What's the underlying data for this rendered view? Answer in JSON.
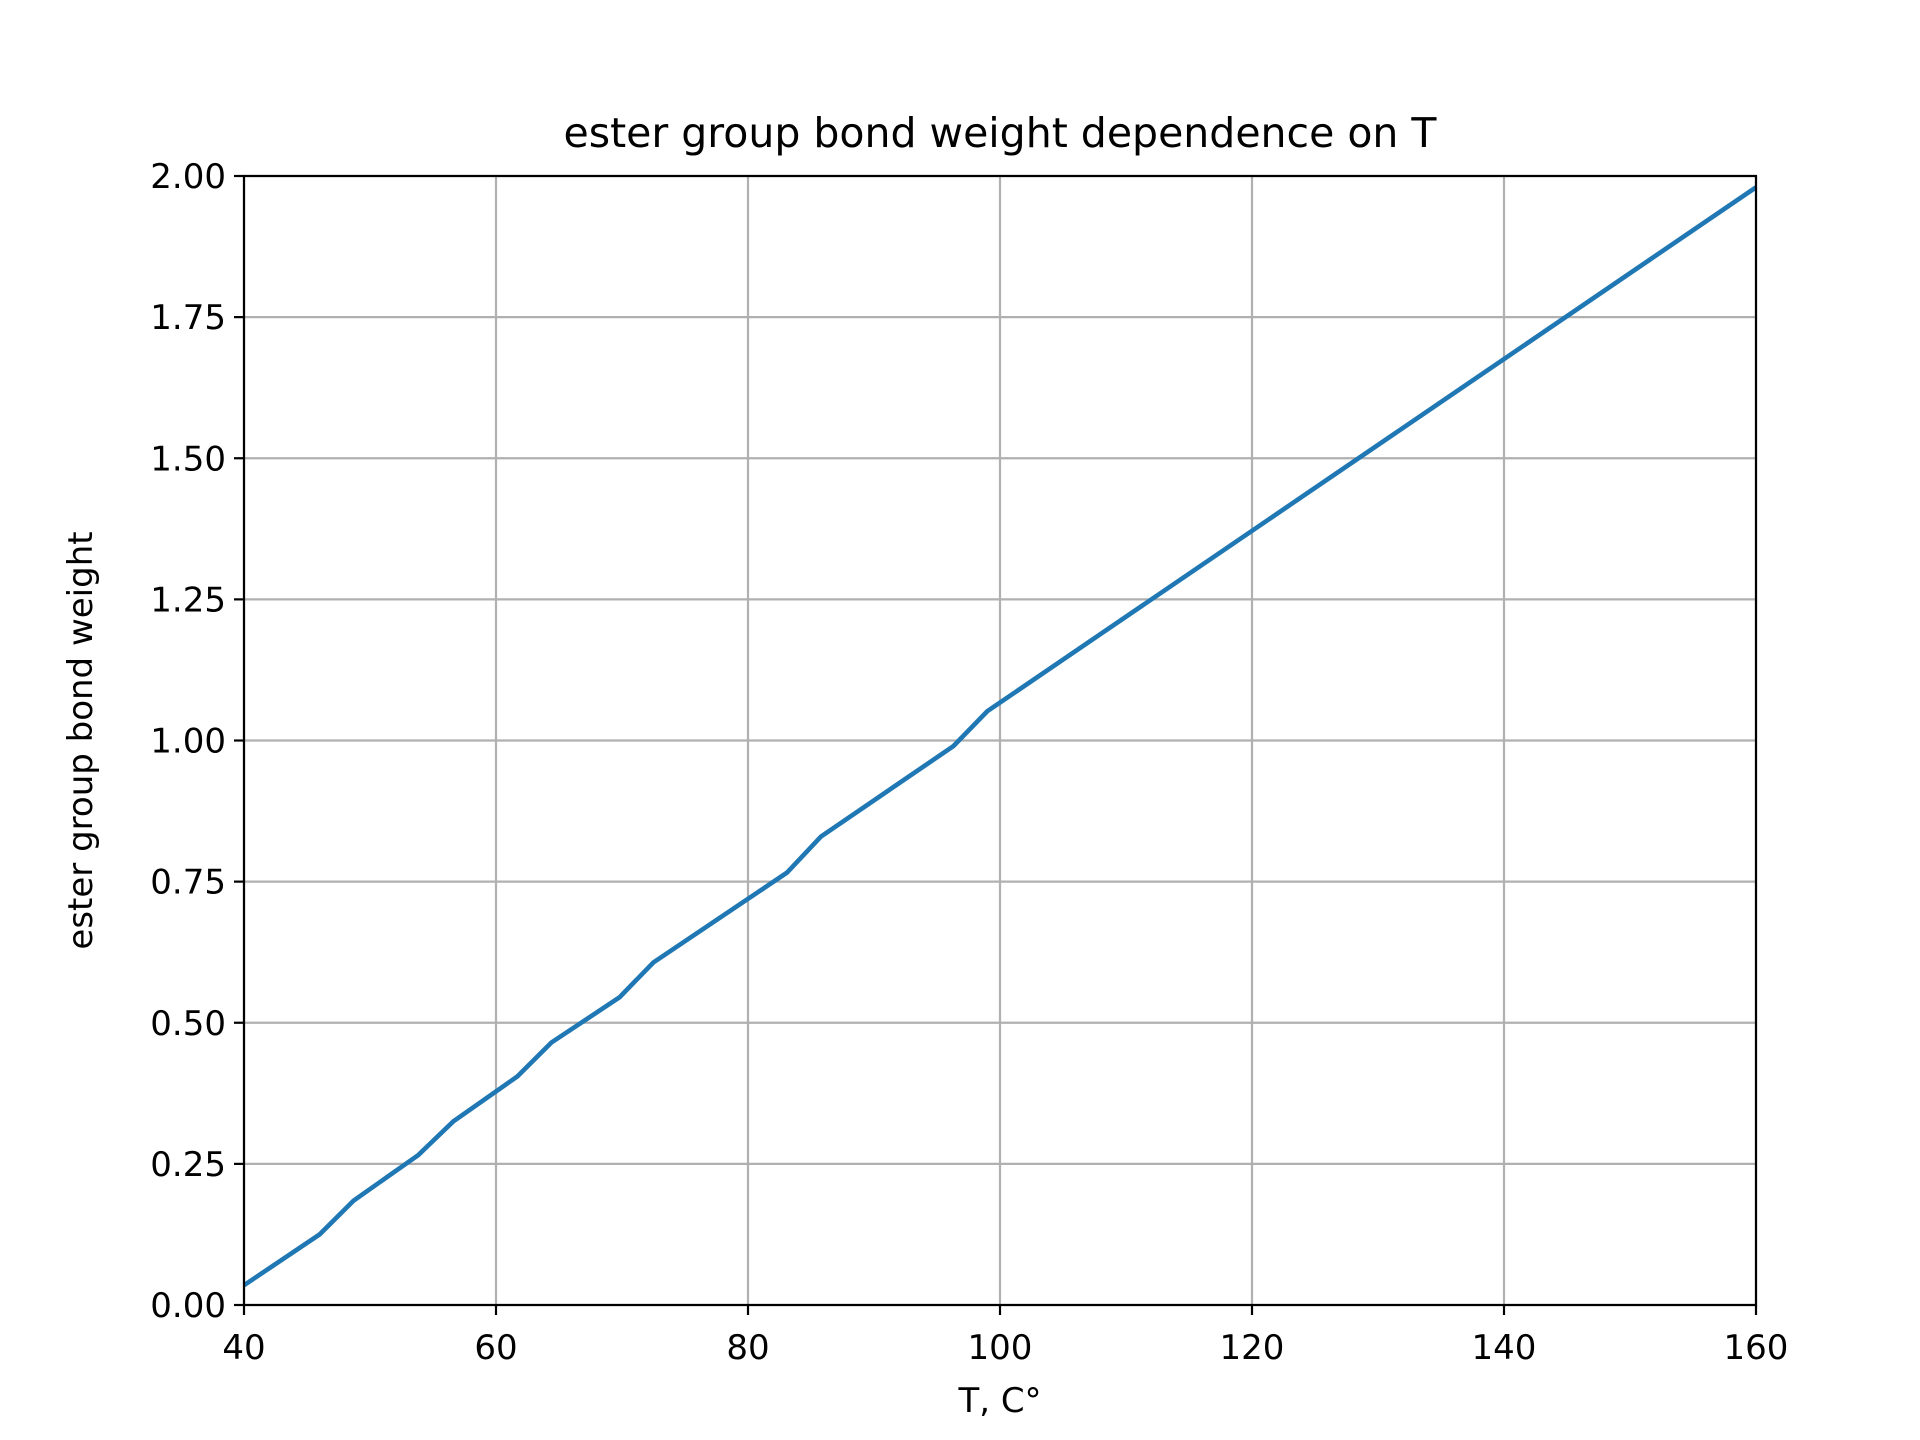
{
  "chart_data": {
    "type": "line",
    "title": "ester group bond weight dependence on T",
    "xlabel": "T, C°",
    "ylabel": "ester group bond weight",
    "xlim": [
      40,
      160
    ],
    "ylim": [
      0,
      2
    ],
    "xticks": [
      40,
      60,
      80,
      100,
      120,
      140,
      160
    ],
    "yticks": [
      0,
      0.25,
      0.5,
      0.75,
      1.0,
      1.25,
      1.5,
      1.75,
      2.0
    ],
    "xtick_labels": [
      "40",
      "60",
      "80",
      "100",
      "120",
      "140",
      "160"
    ],
    "ytick_labels": [
      "0.00",
      "0.25",
      "0.50",
      "0.75",
      "1.00",
      "1.25",
      "1.50",
      "1.75",
      "2.00"
    ],
    "grid": true,
    "colors": {
      "line": "#1f77b4"
    },
    "series": [
      {
        "x": [
          40,
          46,
          48.7,
          53.8,
          56.6,
          61.7,
          64.4,
          69.8,
          72.5,
          83.1,
          85.8,
          96.3,
          99,
          160
        ],
        "y": [
          0.035,
          0.125,
          0.185,
          0.265,
          0.325,
          0.405,
          0.465,
          0.545,
          0.607,
          0.766,
          0.83,
          0.99,
          1.052,
          1.98
        ]
      }
    ]
  }
}
